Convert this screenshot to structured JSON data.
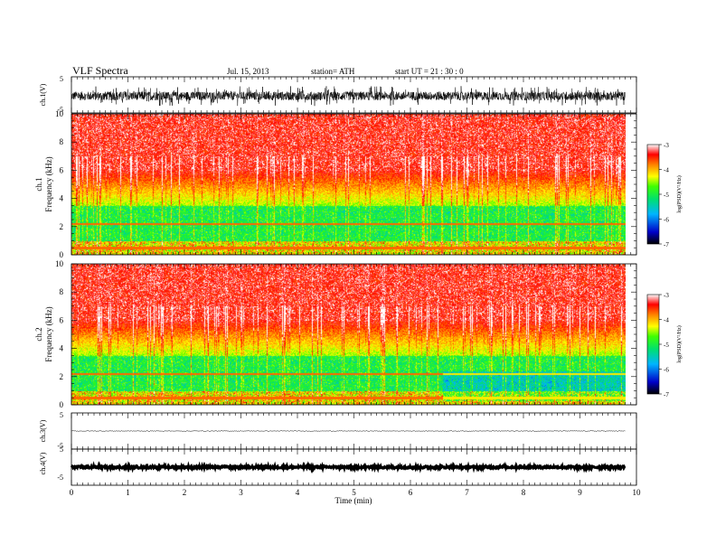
{
  "header": {
    "title": "VLF  Spectra",
    "date": "Jul.  15, 2013",
    "station": "station= ATH",
    "start": "start  UT  =    21 : 30 : 0"
  },
  "chart_data": [
    {
      "type": "line",
      "panel": "waveform-ch1",
      "ylabel": "ch.1(V)",
      "ylim": [
        -5,
        5
      ],
      "yticks": [
        "5",
        "-5"
      ],
      "signal": {
        "mean": -0.3,
        "amplitude": 1.2,
        "style": "noisy-dense"
      }
    },
    {
      "type": "heatmap",
      "panel": "spectrogram-ch1",
      "ylabel": [
        "ch.1",
        "Frequency  (kHz)"
      ],
      "ylim": [
        0,
        10
      ],
      "yticks": [
        "0",
        "2",
        "4",
        "6",
        "8",
        "10"
      ],
      "colorbar": {
        "label": "log(PSD)(V²/Hz)",
        "range": [
          -7,
          -3
        ],
        "ticks": [
          "-3",
          "-4",
          "-5",
          "-6",
          "-7"
        ]
      }
    },
    {
      "type": "heatmap",
      "panel": "spectrogram-ch2",
      "ylabel": [
        "ch.2",
        "Frequency  (kHz)"
      ],
      "ylim": [
        0,
        10
      ],
      "yticks": [
        "0",
        "2",
        "4",
        "6",
        "8",
        "10"
      ],
      "colorbar": {
        "label": "log(PSD)(V²/Hz)",
        "range": [
          -7,
          -3
        ],
        "ticks": [
          "-3",
          "-4",
          "-5",
          "-6",
          "-7"
        ]
      }
    },
    {
      "type": "line",
      "panel": "waveform-ch3",
      "ylabel": "ch.3(V)",
      "ylim": [
        -5,
        5
      ],
      "yticks": [
        "5",
        "-5"
      ],
      "signal": {
        "mean": 0,
        "amplitude": 0.1,
        "style": "flat"
      }
    },
    {
      "type": "line",
      "panel": "waveform-ch4",
      "ylabel": "ch.4(V)",
      "ylim": [
        -5,
        5
      ],
      "yticks": [
        "5",
        "-5"
      ],
      "signal": {
        "mean": 0,
        "amplitude": 0.3,
        "style": "thick-flat"
      }
    }
  ],
  "xaxis": {
    "label": "Time  (min)",
    "ticks": [
      "0",
      "1",
      "2",
      "3",
      "4",
      "5",
      "6",
      "7",
      "8",
      "9",
      "10"
    ],
    "range": [
      0,
      10
    ],
    "data_end": 9.8
  }
}
